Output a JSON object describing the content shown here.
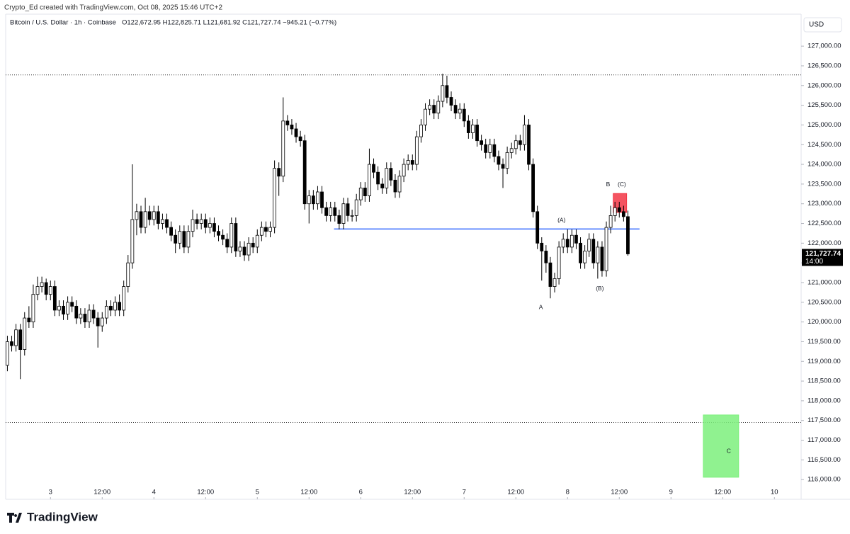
{
  "attribution": "Crypto_Ed created with TradingView.com, Oct 08, 2025 15:46 UTC+2",
  "logo": "TradingView",
  "chart_data": {
    "type": "candlestick",
    "title": "Bitcoin / U.S. Dollar · 1h · Coinbase",
    "subtitle": "O122,672.95 H122,825.71 L121,681.92 C121,727.74 −945.21 (−0.77%)",
    "currency": "USD",
    "up_color": "#ffffff",
    "down_color": "#000000",
    "x": [
      -10,
      -9,
      -8,
      -7,
      -6,
      -5,
      -4,
      -3,
      -2,
      -1,
      0,
      1,
      2,
      3,
      4,
      5,
      6,
      7,
      8,
      9,
      10,
      11,
      12,
      13,
      14,
      15,
      16,
      17,
      18,
      19,
      20,
      21,
      22,
      23,
      24,
      25,
      26,
      27,
      28,
      29,
      30,
      31,
      32,
      33,
      34,
      35,
      36,
      37,
      38,
      39,
      40,
      41,
      42,
      43,
      44,
      45,
      46,
      47,
      48,
      49,
      50,
      51,
      52,
      53,
      54,
      55,
      56,
      57,
      58,
      59,
      60,
      61,
      62,
      63,
      64,
      65,
      66,
      67,
      68,
      69,
      70,
      71,
      72,
      73,
      74,
      75,
      76,
      77,
      78,
      79,
      80,
      81,
      82,
      83,
      84,
      85,
      86,
      87,
      88,
      89,
      90,
      91,
      92,
      93,
      94,
      95,
      96,
      97,
      98,
      99,
      100,
      101,
      102,
      103,
      104,
      105,
      106,
      107,
      108,
      109,
      110,
      111,
      112,
      113,
      114,
      115,
      116,
      117,
      118,
      119,
      120,
      121,
      122,
      123,
      124,
      125,
      126,
      127,
      128,
      129,
      130,
      131,
      132,
      133,
      134
    ],
    "open": [
      118900,
      119500,
      119400,
      119800,
      119300,
      120100,
      120000,
      120700,
      120900,
      121000,
      120700,
      120900,
      120300,
      120400,
      120200,
      120500,
      120400,
      120100,
      120200,
      120000,
      120300,
      120100,
      119900,
      120100,
      120400,
      120300,
      120500,
      120300,
      120900,
      121500,
      122600,
      122800,
      122400,
      122800,
      122600,
      122800,
      122500,
      122600,
      122400,
      122200,
      122000,
      122300,
      121900,
      122300,
      122600,
      122500,
      122600,
      122400,
      122500,
      122300,
      122200,
      122100,
      121900,
      122500,
      121800,
      121900,
      121700,
      122000,
      121900,
      122200,
      122400,
      122300,
      122400,
      123900,
      123700,
      125100,
      125000,
      124900,
      124700,
      124600,
      123000,
      123200,
      123000,
      123300,
      122900,
      122700,
      122900,
      122700,
      122500,
      123000,
      122700,
      122700,
      123100,
      123400,
      123200,
      124000,
      123800,
      123500,
      123400,
      123900,
      123600,
      123300,
      123700,
      124000,
      124100,
      124000,
      124700,
      125000,
      125400,
      125500,
      125300,
      125600,
      126000,
      125700,
      125500,
      125300,
      125400,
      125100,
      124800,
      125000,
      124600,
      124500,
      124300,
      124500,
      124200,
      124000,
      123900,
      124300,
      124400,
      124600,
      124500,
      125000,
      124000,
      122800,
      122000,
      121800,
      121500,
      120900,
      121100,
      121900,
      122100,
      121900,
      122200,
      122000,
      121500,
      121800,
      122100,
      121500,
      121900,
      121300,
      122400,
      122700,
      122900,
      122800,
      122672.95
    ],
    "high": [
      119650,
      119650,
      119950,
      119950,
      120250,
      120400,
      120950,
      121150,
      121150,
      121100,
      121050,
      121050,
      120550,
      120550,
      120650,
      120650,
      120550,
      120350,
      120350,
      120450,
      120450,
      120250,
      120250,
      120550,
      120550,
      120650,
      120700,
      121050,
      121700,
      124000,
      123000,
      122950,
      123150,
      122950,
      122950,
      122950,
      122750,
      122750,
      122550,
      122350,
      122450,
      122450,
      122450,
      122850,
      122750,
      122750,
      122750,
      122650,
      122650,
      122450,
      122350,
      122250,
      122650,
      122650,
      122050,
      122050,
      122150,
      122150,
      122350,
      122550,
      122550,
      122550,
      124100,
      124050,
      125700,
      125250,
      125150,
      125050,
      124850,
      124750,
      123350,
      123350,
      123450,
      123450,
      123050,
      123050,
      123050,
      122850,
      123150,
      123150,
      122850,
      123250,
      123550,
      123550,
      124400,
      124150,
      123950,
      123650,
      124050,
      124050,
      123750,
      123850,
      124150,
      124250,
      124250,
      124850,
      125150,
      125550,
      125650,
      125650,
      125750,
      126300,
      126250,
      125850,
      125650,
      125550,
      125550,
      125250,
      125150,
      125150,
      124750,
      124650,
      124650,
      124650,
      124350,
      124150,
      124450,
      124550,
      124750,
      124750,
      125250,
      125150,
      124150,
      122950,
      122150,
      121950,
      121650,
      121250,
      122050,
      122250,
      122350,
      122350,
      122350,
      122150,
      121950,
      122250,
      122250,
      122050,
      122050,
      122550,
      122950,
      123050,
      123050,
      122950,
      122825.71
    ],
    "low": [
      118750,
      119250,
      119250,
      118550,
      119150,
      119850,
      119850,
      120550,
      120750,
      120550,
      120550,
      120150,
      120150,
      120050,
      120050,
      120250,
      119950,
      119950,
      119850,
      119850,
      119950,
      119350,
      119750,
      119950,
      120150,
      120150,
      120150,
      120150,
      120750,
      121350,
      122200,
      122250,
      122250,
      122450,
      122450,
      122350,
      122350,
      122250,
      122050,
      121750,
      121850,
      121750,
      121750,
      122150,
      122350,
      122350,
      122250,
      122250,
      122150,
      122050,
      121950,
      121750,
      121750,
      121650,
      121650,
      121550,
      121550,
      121750,
      121750,
      122050,
      122150,
      122150,
      122250,
      123200,
      123550,
      124850,
      124750,
      124550,
      124450,
      122850,
      122500,
      122850,
      122850,
      122750,
      122550,
      122550,
      122550,
      122350,
      122350,
      122550,
      122550,
      122550,
      122950,
      123050,
      123050,
      123650,
      123350,
      123250,
      123250,
      123450,
      123150,
      123150,
      123550,
      123850,
      123850,
      123850,
      124550,
      124850,
      125250,
      125150,
      125150,
      125450,
      125550,
      125350,
      125150,
      125150,
      124950,
      124650,
      124650,
      124450,
      124350,
      124150,
      124150,
      124050,
      123850,
      123400,
      123750,
      124150,
      124250,
      124350,
      124350,
      123850,
      122650,
      121850,
      121050,
      121250,
      120600,
      120750,
      120950,
      121750,
      121750,
      121750,
      121850,
      121350,
      121350,
      121650,
      121350,
      121100,
      121150,
      121150,
      122250,
      122550,
      122650,
      122550,
      121681.92
    ],
    "close": [
      119500,
      119400,
      119800,
      119300,
      120100,
      120000,
      120700,
      120900,
      121000,
      120700,
      120900,
      120300,
      120400,
      120200,
      120500,
      120400,
      120100,
      120200,
      120000,
      120300,
      120100,
      119900,
      120100,
      120400,
      120300,
      120500,
      120300,
      120900,
      121500,
      122600,
      122800,
      122400,
      122800,
      122600,
      122800,
      122500,
      122600,
      122400,
      122200,
      122000,
      122300,
      121900,
      122300,
      122600,
      122500,
      122600,
      122400,
      122500,
      122300,
      122200,
      122100,
      121900,
      122500,
      121800,
      121900,
      121700,
      122000,
      121900,
      122200,
      122400,
      122300,
      122400,
      123900,
      123700,
      125100,
      125000,
      124900,
      124700,
      124600,
      123000,
      123200,
      123000,
      123300,
      122900,
      122700,
      122900,
      122700,
      122500,
      123000,
      122700,
      122700,
      123100,
      123400,
      123200,
      124000,
      123800,
      123500,
      123400,
      123900,
      123600,
      123300,
      123700,
      124000,
      124100,
      124000,
      124700,
      125000,
      125400,
      125500,
      125300,
      125600,
      126000,
      125700,
      125500,
      125300,
      125400,
      125100,
      124800,
      125000,
      124600,
      124500,
      124300,
      124500,
      124200,
      124000,
      123900,
      124300,
      124400,
      124600,
      124500,
      125000,
      124000,
      122800,
      122000,
      121800,
      121500,
      120900,
      121100,
      121900,
      122100,
      121900,
      122200,
      122000,
      121500,
      121800,
      122100,
      121500,
      121900,
      121300,
      122400,
      122700,
      122900,
      122800,
      122672.95,
      121727.74
    ],
    "xlim": [
      -10.4,
      174.2
    ],
    "xticks": [
      {
        "value": 0,
        "label": "3"
      },
      {
        "value": 12,
        "label": "12:00"
      },
      {
        "value": 24,
        "label": "4"
      },
      {
        "value": 36,
        "label": "12:00"
      },
      {
        "value": 48,
        "label": "5"
      },
      {
        "value": 60,
        "label": "12:00"
      },
      {
        "value": 72,
        "label": "6"
      },
      {
        "value": 84,
        "label": "12:00"
      },
      {
        "value": 96,
        "label": "7"
      },
      {
        "value": 108,
        "label": "12:00"
      },
      {
        "value": 120,
        "label": "8"
      },
      {
        "value": 132,
        "label": "12:00"
      },
      {
        "value": 144,
        "label": "9"
      },
      {
        "value": 156,
        "label": "12:00"
      },
      {
        "value": 168,
        "label": "10"
      }
    ],
    "ylim": [
      115500,
      127380
    ],
    "yticks": [
      {
        "value": 116000,
        "label": "116,000.00"
      },
      {
        "value": 116500,
        "label": "116,500.00"
      },
      {
        "value": 117000,
        "label": "117,000.00"
      },
      {
        "value": 117500,
        "label": "117,500.00"
      },
      {
        "value": 118000,
        "label": "118,000.00"
      },
      {
        "value": 118500,
        "label": "118,500.00"
      },
      {
        "value": 119000,
        "label": "119,000.00"
      },
      {
        "value": 119500,
        "label": "119,500.00"
      },
      {
        "value": 120000,
        "label": "120,000.00"
      },
      {
        "value": 120500,
        "label": "120,500.00"
      },
      {
        "value": 121000,
        "label": "121,000.00"
      },
      {
        "value": 121500,
        "label": "121,500.00"
      },
      {
        "value": 122000,
        "label": "122,000.00"
      },
      {
        "value": 122500,
        "label": "122,500.00"
      },
      {
        "value": 123000,
        "label": "123,000.00"
      },
      {
        "value": 123500,
        "label": "123,500.00"
      },
      {
        "value": 124000,
        "label": "124,000.00"
      },
      {
        "value": 124500,
        "label": "124,500.00"
      },
      {
        "value": 125000,
        "label": "125,000.00"
      },
      {
        "value": 125500,
        "label": "125,500.00"
      },
      {
        "value": 126000,
        "label": "126,000.00"
      },
      {
        "value": 126500,
        "label": "126,500.00"
      },
      {
        "value": 127000,
        "label": "127,000.00"
      }
    ],
    "last_price": {
      "value": 121727.74,
      "label": "121,727.74"
    },
    "countdown": "14:00",
    "hlines": [
      {
        "value": 126270,
        "color": "#333333"
      },
      {
        "value": 117450,
        "color": "#333333"
      }
    ],
    "segments": [
      {
        "x": [
          65.8,
          136.7
        ],
        "value": 122360,
        "color": "#2962ff"
      }
    ],
    "boxes": [
      {
        "x": [
          130.6,
          133.7
        ],
        "y": [
          122780,
          123260
        ],
        "color": "#f23645"
      },
      {
        "x": [
          151.5,
          159.7
        ],
        "y": [
          116060,
          117640
        ],
        "color": "#7cf07c"
      }
    ],
    "labels": [
      {
        "text": "A",
        "x": 113.8,
        "y": 120370
      },
      {
        "text": "(A)",
        "x": 118.6,
        "y": 122580
      },
      {
        "text": "B",
        "x": 129.4,
        "y": 123480
      },
      {
        "text": "(C)",
        "x": 132.6,
        "y": 123480
      },
      {
        "text": "(B)",
        "x": 127.5,
        "y": 120840
      },
      {
        "text": "C",
        "x": 157.4,
        "y": 116720
      }
    ]
  }
}
